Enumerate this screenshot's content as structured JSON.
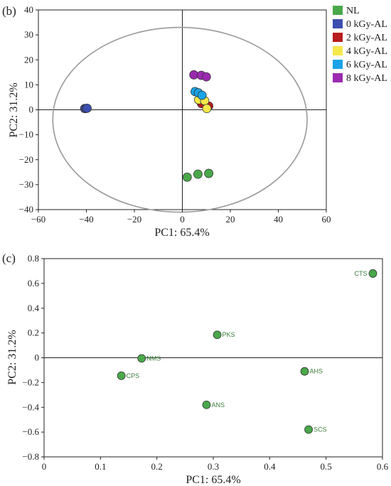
{
  "chart_data": [
    {
      "panel": "(b)",
      "type": "scatter",
      "xlabel": "PC1: 65.4%",
      "ylabel": "PC2: 31.2%",
      "xlim": [
        -60,
        60
      ],
      "ylim": [
        -40,
        40
      ],
      "xticks": [
        -60,
        -40,
        -20,
        0,
        20,
        40,
        60
      ],
      "yticks": [
        -40,
        -30,
        -20,
        -10,
        0,
        10,
        20,
        30,
        40
      ],
      "xtick_labels": [
        "−60",
        "−40",
        "−20",
        "0",
        "20",
        "40",
        "60"
      ],
      "ytick_labels": [
        "−40",
        "−30",
        "−20",
        "−10",
        "0",
        "10",
        "20",
        "30",
        "40"
      ],
      "ellipse": {
        "center": [
          -1,
          -4
        ],
        "radii": [
          53,
          37
        ]
      },
      "legend_position": "right",
      "series": [
        {
          "name": "NL",
          "color": "#4aa84a",
          "points": [
            [
              2,
              -27
            ],
            [
              6.5,
              -25.8
            ],
            [
              11,
              -25.5
            ]
          ]
        },
        {
          "name": "0 kGy-AL",
          "color": "#3c4fb0",
          "points": [
            [
              -40.7,
              0.5
            ],
            [
              -40.2,
              0.5
            ],
            [
              -39.7,
              0.6
            ]
          ]
        },
        {
          "name": "2 kGy-AL",
          "color": "#b81c1c",
          "points": [
            [
              8,
              2.5
            ],
            [
              10.5,
              1.3
            ],
            [
              11,
              1.5
            ]
          ]
        },
        {
          "name": "4 kGy-AL",
          "color": "#f5e84a",
          "points": [
            [
              6.8,
              4
            ],
            [
              9.3,
              3.6
            ],
            [
              10.2,
              0.5
            ]
          ]
        },
        {
          "name": "6 kGy-AL",
          "color": "#1aa3e8",
          "points": [
            [
              5.3,
              7.3
            ],
            [
              6.7,
              6.8
            ],
            [
              8.2,
              5.8
            ]
          ]
        },
        {
          "name": "8 kGy-AL",
          "color": "#9b2ab0",
          "points": [
            [
              4.8,
              14
            ],
            [
              7.9,
              13.8
            ],
            [
              10,
              13.2
            ]
          ]
        }
      ]
    },
    {
      "panel": "(c)",
      "type": "scatter",
      "xlabel": "PC1: 65.4%",
      "ylabel": "PC2: 31.2%",
      "xlim": [
        0,
        0.6
      ],
      "ylim": [
        -0.8,
        0.8
      ],
      "xticks": [
        0,
        0.1,
        0.2,
        0.3,
        0.4,
        0.5,
        0.6
      ],
      "yticks": [
        -0.8,
        -0.6,
        -0.4,
        -0.2,
        0,
        0.2,
        0.4,
        0.6,
        0.8
      ],
      "xtick_labels": [
        "0",
        "0.1",
        "0.2",
        "0.3",
        "0.4",
        "0.5",
        "0.6"
      ],
      "ytick_labels": [
        "−0.8",
        "−0.6",
        "−0.4",
        "−0.2",
        "0",
        "0.2",
        "0.4",
        "0.6",
        "0.8"
      ],
      "point_color": "#4aa84a",
      "label_color": "#3a7d3a",
      "points": [
        {
          "label": "CTS",
          "x": 0.583,
          "y": 0.68,
          "side": "left"
        },
        {
          "label": "PKS",
          "x": 0.307,
          "y": 0.185,
          "side": "right"
        },
        {
          "label": "NMS",
          "x": 0.173,
          "y": -0.005,
          "side": "right"
        },
        {
          "label": "CPS",
          "x": 0.137,
          "y": -0.145,
          "side": "right"
        },
        {
          "label": "AHS",
          "x": 0.462,
          "y": -0.11,
          "side": "right"
        },
        {
          "label": "ANS",
          "x": 0.288,
          "y": -0.38,
          "side": "right"
        },
        {
          "label": "SCS",
          "x": 0.469,
          "y": -0.58,
          "side": "right"
        }
      ]
    }
  ]
}
